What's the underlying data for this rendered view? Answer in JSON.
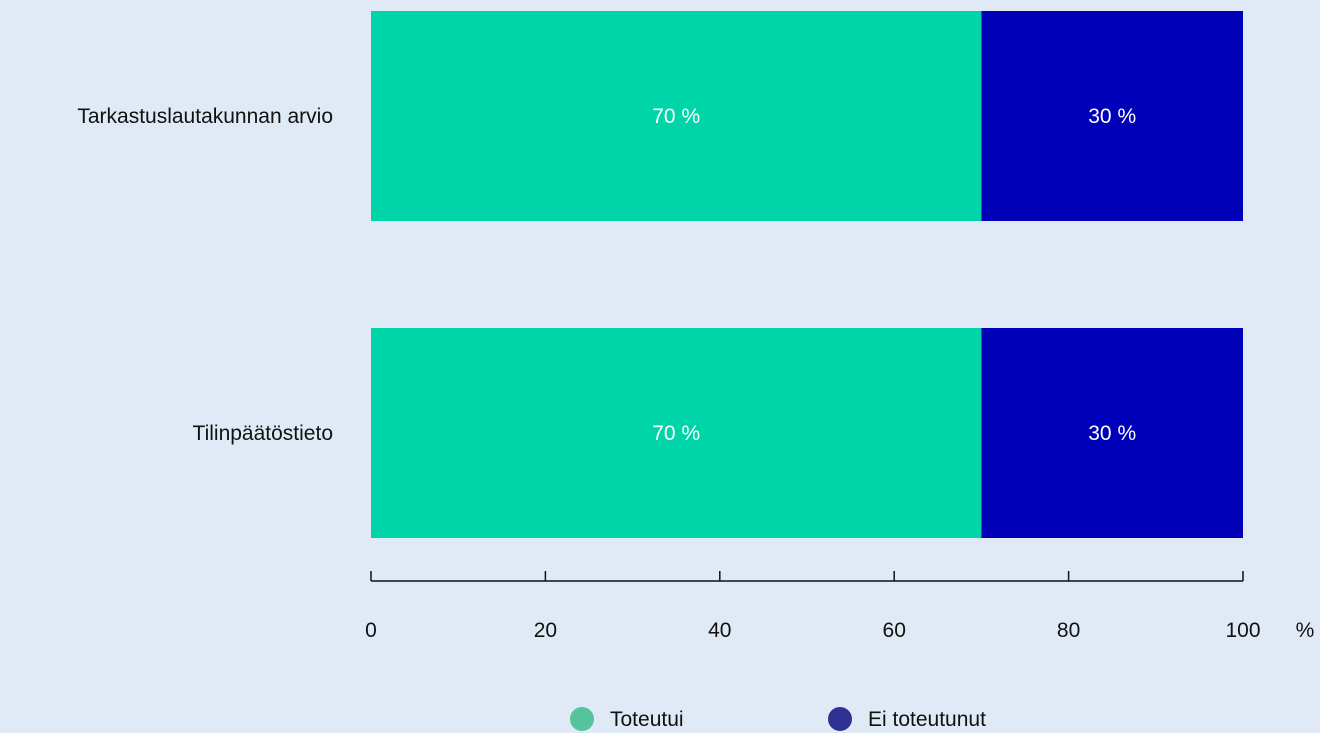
{
  "chart_data": {
    "type": "bar",
    "orientation": "horizontal",
    "stacked": true,
    "categories": [
      "Tarkastuslautakunnan arvio",
      "Tilinpäätöstieto"
    ],
    "series": [
      {
        "name": "Toteutui",
        "values": [
          70,
          70
        ],
        "labels": [
          "70 %",
          "70 %"
        ],
        "color": "#00d5aa"
      },
      {
        "name": "Ei toteutunut",
        "values": [
          30,
          30
        ],
        "labels": [
          "30 %",
          "30 %"
        ],
        "color": "#0000b8"
      }
    ],
    "xlim": [
      0,
      100
    ],
    "xticks": [
      0,
      20,
      40,
      60,
      80,
      100
    ],
    "xtick_labels": [
      "0",
      "20",
      "40",
      "60",
      "80",
      "100"
    ],
    "x_unit": "%",
    "legend": {
      "position": "bottom",
      "items": [
        {
          "label": "Toteutui",
          "color": "#55c39b"
        },
        {
          "label": "Ei toteutunut",
          "color": "#2e3192"
        }
      ]
    },
    "grid": false
  }
}
